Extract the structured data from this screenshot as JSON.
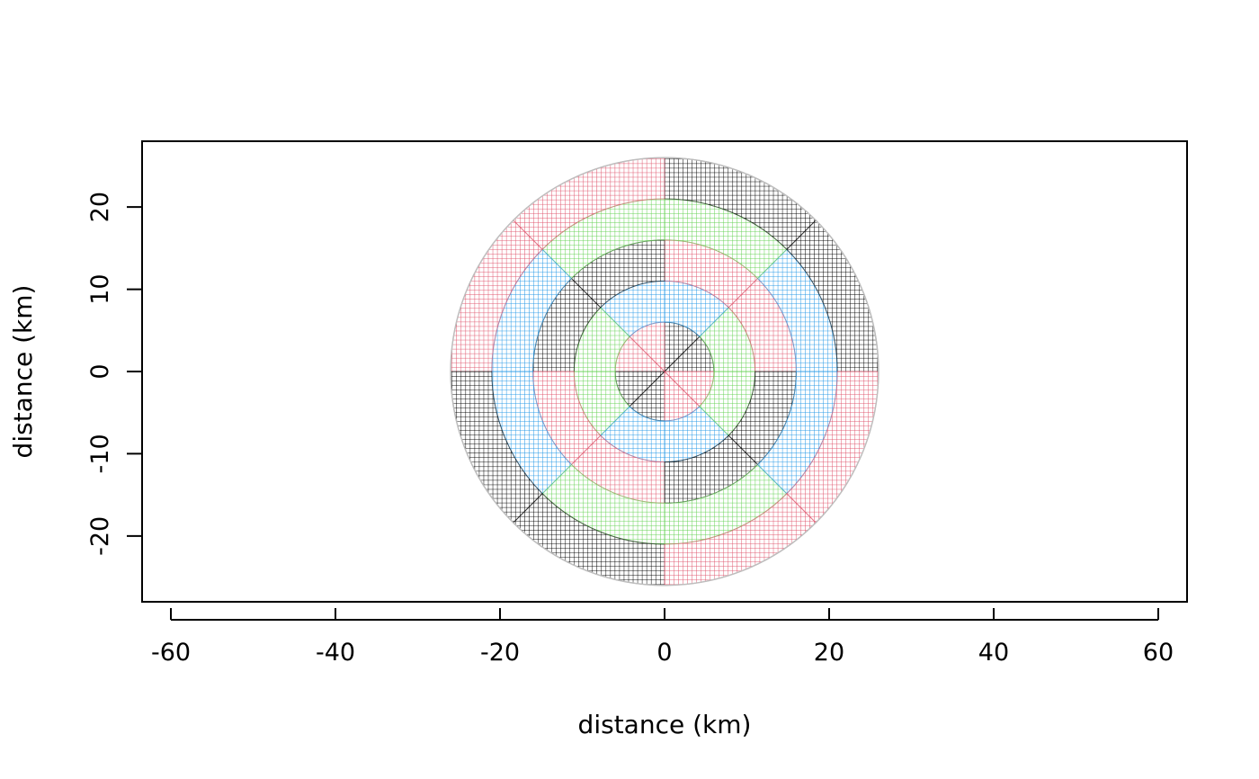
{
  "chart_data": {
    "type": "polar-grid-plot",
    "title": "",
    "xlabel": "distance (km)",
    "ylabel": "distance (km)",
    "xlim": [
      -63.5,
      63.5
    ],
    "ylim": [
      -28,
      28
    ],
    "x_ticks": [
      -60,
      -40,
      -20,
      0,
      20,
      40,
      60
    ],
    "y_ticks": [
      -20,
      -10,
      0,
      10,
      20
    ],
    "grid": false,
    "legend": "none",
    "colors": [
      "#000000",
      "#DF536B",
      "#61D04F",
      "#2297E6"
    ],
    "outline_color": "#BEBEBE",
    "point_spacing_km": 0.55,
    "rings": [
      {
        "r_inner": 0,
        "r_outer": 6,
        "sector_offset": 0,
        "sectors": 8
      },
      {
        "r_inner": 6,
        "r_outer": 11,
        "sector_offset": 1,
        "sectors": 8
      },
      {
        "r_inner": 11,
        "r_outer": 16,
        "sector_offset": 0,
        "sectors": 8
      },
      {
        "r_inner": 16,
        "r_outer": 21,
        "sector_offset": 1,
        "sectors": 8
      },
      {
        "r_inner": 21,
        "r_outer": 26,
        "sector_offset": 0,
        "sectors": 8
      }
    ],
    "sector_color_index": [
      [
        0,
        0,
        1,
        1,
        0,
        0,
        1,
        1
      ],
      [
        2,
        3,
        3,
        2,
        2,
        3,
        3,
        2
      ],
      [
        1,
        1,
        0,
        0,
        1,
        1,
        0,
        0
      ],
      [
        3,
        2,
        2,
        3,
        3,
        2,
        2,
        3
      ],
      [
        0,
        0,
        1,
        1,
        0,
        0,
        1,
        1
      ]
    ]
  }
}
